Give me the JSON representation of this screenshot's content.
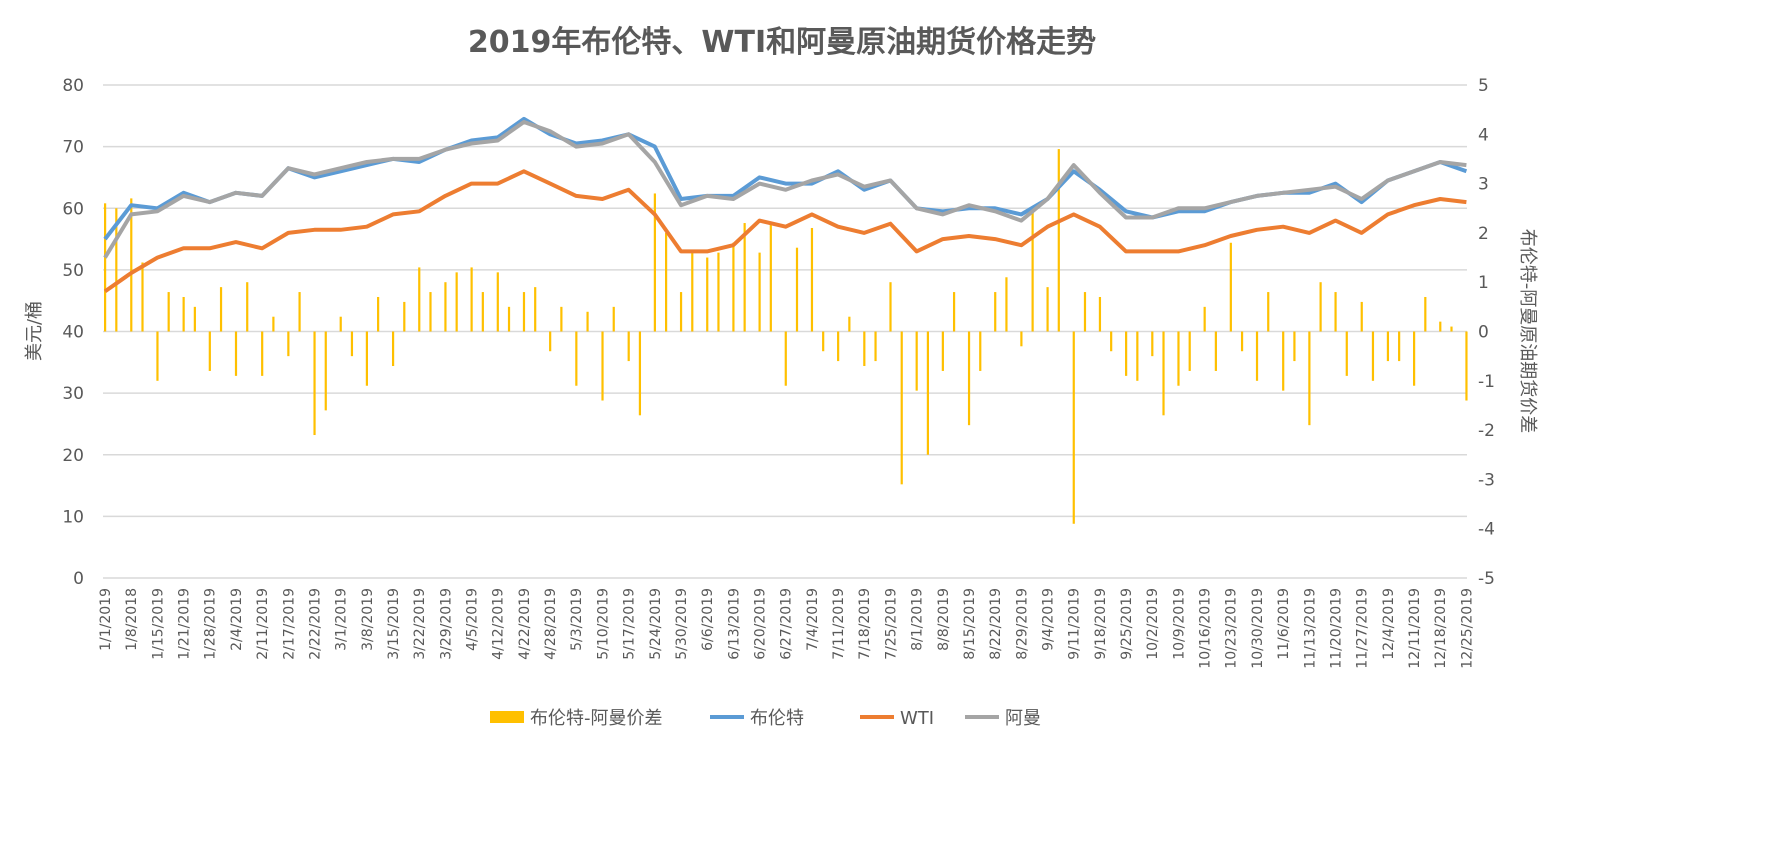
{
  "chart_data": {
    "type": "bar+line",
    "title": "2019年布伦特、WTI和阿曼原油期货价格走势",
    "ylabel_left": "美元/桶",
    "ylabel_right": "布伦特-阿曼原油期货价差",
    "ylim_left": [
      0,
      80
    ],
    "ylim_right": [
      -5,
      5
    ],
    "yticks_left": [
      "0",
      "10",
      "20",
      "30",
      "40",
      "50",
      "60",
      "70",
      "80"
    ],
    "yticks_right": [
      "-5",
      "-4",
      "-3",
      "-2",
      "-1",
      "0",
      "1",
      "2",
      "3",
      "4",
      "5"
    ],
    "grid": true,
    "legend_position": "bottom",
    "x_tick_labels": [
      "1/1/2019",
      "1/8/2018",
      "1/15/2019",
      "1/21/2019",
      "1/28/2019",
      "2/4/2019",
      "2/11/2019",
      "2/17/2019",
      "2/22/2019",
      "3/1/2019",
      "3/8/2019",
      "3/15/2019",
      "3/22/2019",
      "3/29/2019",
      "4/5/2019",
      "4/12/2019",
      "4/22/2019",
      "4/28/2019",
      "5/3/2019",
      "5/10/2019",
      "5/17/2019",
      "5/24/2019",
      "5/30/2019",
      "6/6/2019",
      "6/13/2019",
      "6/20/2019",
      "6/27/2019",
      "7/4/2019",
      "7/11/2019",
      "7/18/2019",
      "7/25/2019",
      "8/1/2019",
      "8/8/2019",
      "8/15/2019",
      "8/22/2019",
      "8/29/2019",
      "9/4/2019",
      "9/11/2019",
      "9/18/2019",
      "9/25/2019",
      "10/2/2019",
      "10/9/2019",
      "10/16/2019",
      "10/23/2019",
      "10/30/2019",
      "11/6/2019",
      "11/13/2019",
      "11/20/2019",
      "11/27/2019",
      "12/4/2019",
      "12/11/2019",
      "12/18/2019",
      "12/25/2019"
    ],
    "line_dates": [
      "1/1",
      "1/8",
      "1/15",
      "1/22",
      "1/29",
      "2/5",
      "2/12",
      "2/19",
      "2/26",
      "3/5",
      "3/12",
      "3/19",
      "3/26",
      "4/2",
      "4/9",
      "4/16",
      "4/23",
      "4/30",
      "5/7",
      "5/14",
      "5/21",
      "5/28",
      "6/4",
      "6/11",
      "6/18",
      "6/25",
      "7/2",
      "7/9",
      "7/16",
      "7/23",
      "7/30",
      "8/6",
      "8/13",
      "8/20",
      "8/27",
      "9/3",
      "9/10",
      "9/17",
      "9/24",
      "10/1",
      "10/8",
      "10/15",
      "10/22",
      "10/29",
      "11/5",
      "11/12",
      "11/19",
      "11/26",
      "12/3",
      "12/10",
      "12/17",
      "12/24",
      "12/31"
    ],
    "series": [
      {
        "name": "布伦特-阿曼价差",
        "type": "bar",
        "axis": "right",
        "color": "#FFC000",
        "dates": [
          "1/1",
          "1/4",
          "1/8",
          "1/11",
          "1/15",
          "1/18",
          "1/22",
          "1/25",
          "1/29",
          "2/1",
          "2/5",
          "2/8",
          "2/12",
          "2/15",
          "2/19",
          "2/22",
          "2/26",
          "3/1",
          "3/5",
          "3/8",
          "3/12",
          "3/15",
          "3/19",
          "3/22",
          "3/26",
          "3/29",
          "4/2",
          "4/5",
          "4/9",
          "4/12",
          "4/16",
          "4/19",
          "4/23",
          "4/26",
          "4/30",
          "5/3",
          "5/7",
          "5/10",
          "5/14",
          "5/17",
          "5/21",
          "5/24",
          "5/28",
          "5/31",
          "6/4",
          "6/7",
          "6/11",
          "6/14",
          "6/18",
          "6/21",
          "6/25",
          "6/28",
          "7/2",
          "7/5",
          "7/9",
          "7/12",
          "7/16",
          "7/19",
          "7/23",
          "7/26",
          "7/30",
          "8/2",
          "8/6",
          "8/9",
          "8/13",
          "8/16",
          "8/20",
          "8/23",
          "8/27",
          "8/30",
          "9/3",
          "9/6",
          "9/10",
          "9/13",
          "9/17",
          "9/20",
          "9/24",
          "9/27",
          "10/1",
          "10/4",
          "10/8",
          "10/11",
          "10/15",
          "10/18",
          "10/22",
          "10/25",
          "10/29",
          "11/1",
          "11/5",
          "11/8",
          "11/12",
          "11/15",
          "11/19",
          "11/22",
          "11/26",
          "11/29",
          "12/3",
          "12/6",
          "12/10",
          "12/13",
          "12/17",
          "12/20",
          "12/24",
          "12/27",
          "12/31"
        ],
        "values": [
          2.6,
          2.5,
          2.7,
          1.4,
          -1.0,
          0.8,
          0.7,
          0.5,
          -0.8,
          0.9,
          -0.9,
          1.0,
          -0.9,
          0.3,
          -0.5,
          0.8,
          -2.1,
          -1.6,
          0.3,
          -0.5,
          -1.1,
          0.7,
          -0.7,
          0.6,
          1.3,
          0.8,
          1.0,
          1.2,
          1.3,
          0.8,
          1.2,
          0.5,
          0.8,
          0.9,
          -0.4,
          0.5,
          -1.1,
          0.4,
          -1.4,
          0.5,
          -0.6,
          -1.7,
          2.8,
          2.0,
          0.8,
          1.6,
          1.5,
          1.6,
          1.8,
          2.2,
          1.6,
          2.2,
          -1.1,
          1.7,
          2.1,
          -0.4,
          -0.6,
          0.3,
          -0.7,
          -0.6,
          1.0,
          -3.1,
          -1.2,
          -2.5,
          -0.8,
          0.8,
          -1.9,
          -0.8,
          0.8,
          1.1,
          -0.3,
          2.5,
          0.9,
          3.7,
          -3.9,
          0.8,
          0.7,
          -0.4,
          -0.9,
          -1.0,
          -0.5,
          -1.7,
          -1.1,
          -0.8,
          0.5,
          -0.8,
          1.8,
          -0.4,
          -1.0,
          0.8,
          -1.2,
          -0.6,
          -1.9,
          1.0,
          0.8,
          -0.9,
          0.6,
          -1.0,
          -0.6,
          -0.6,
          -1.1,
          0.7,
          0.2,
          0.1,
          -1.4
        ]
      },
      {
        "name": "布伦特",
        "type": "line",
        "axis": "left",
        "color": "#5B9BD5",
        "values": [
          55,
          60.5,
          60,
          62.5,
          61,
          62.5,
          62,
          66.5,
          65,
          66,
          67,
          68,
          67.5,
          69.5,
          71,
          71.5,
          74.5,
          72,
          70.5,
          71,
          72,
          70,
          61.5,
          62,
          62,
          65,
          64,
          64,
          66,
          63,
          64.5,
          60,
          59.5,
          60,
          60,
          59,
          61.5,
          66,
          63,
          59.5,
          58.5,
          59.5,
          59.5,
          61,
          62,
          62.5,
          62.5,
          64,
          61,
          64.5,
          66,
          67.5,
          66
        ]
      },
      {
        "name": "WTI",
        "type": "line",
        "axis": "left",
        "color": "#ED7D31",
        "values": [
          46.5,
          49.5,
          52,
          53.5,
          53.5,
          54.5,
          53.5,
          56,
          56.5,
          56.5,
          57,
          59,
          59.5,
          62,
          64,
          64,
          66,
          64,
          62,
          61.5,
          63,
          59,
          53,
          53,
          54,
          58,
          57,
          59,
          57,
          56,
          57.5,
          53,
          55,
          55.5,
          55,
          54,
          57,
          59,
          57,
          53,
          53,
          53,
          54,
          55.5,
          56.5,
          57,
          56,
          58,
          56,
          59,
          60.5,
          61.5,
          61
        ]
      },
      {
        "name": "阿曼",
        "type": "line",
        "axis": "left",
        "color": "#A5A5A5",
        "values": [
          52,
          59,
          59.5,
          62,
          61,
          62.5,
          62,
          66.5,
          65.5,
          66.5,
          67.5,
          68,
          68,
          69.5,
          70.5,
          71,
          74,
          72.5,
          70,
          70.5,
          72,
          67.5,
          60.5,
          62,
          61.5,
          64,
          63,
          64.5,
          65.5,
          63.5,
          64.5,
          60,
          59,
          60.5,
          59.5,
          58,
          61.5,
          67,
          62.5,
          58.5,
          58.5,
          60,
          60,
          61,
          62,
          62.5,
          63,
          63.5,
          61.5,
          64.5,
          66,
          67.5,
          67
        ]
      }
    ]
  }
}
